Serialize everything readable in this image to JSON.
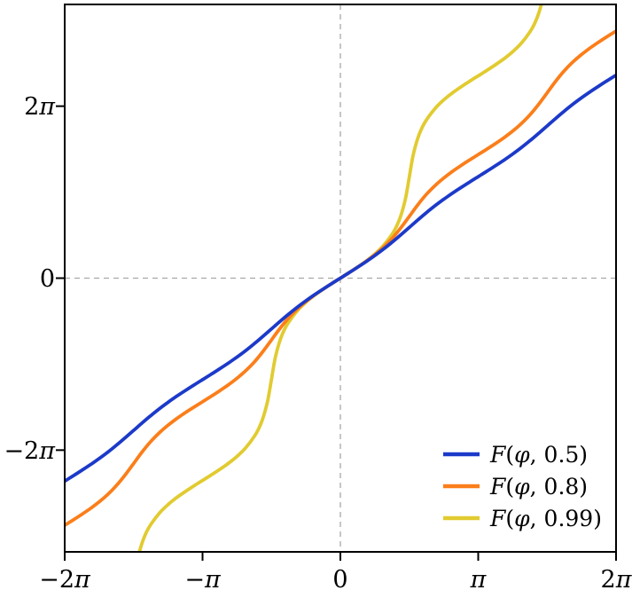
{
  "figure": {
    "background": "#ffffff",
    "title": ""
  },
  "axes": {
    "xlim_over_pi": [
      -2,
      2
    ],
    "ylim": [
      -10,
      10
    ],
    "x_ticks": {
      "values_over_pi": [
        -2,
        -1,
        0,
        1,
        2
      ],
      "labels": [
        "−2π",
        "−π",
        "0",
        "π",
        "2π"
      ]
    },
    "y_ticks": {
      "values_over_pi": [
        -2,
        0,
        2
      ],
      "labels": [
        "−2π",
        "0",
        "2π"
      ]
    },
    "grid": {
      "vertical_at_over_pi": 0,
      "horizontal_at": 0,
      "color": "#a8a8a8",
      "dash": "6 5",
      "width": 1.3
    },
    "spine_color": "#000000",
    "tick_color": "#000000"
  },
  "legend": {
    "position": "lower-right",
    "frame": false,
    "entries": [
      {
        "label": "F(φ, 0.5)"
      },
      {
        "label": "F(φ, 0.8)"
      },
      {
        "label": "F(φ, 0.99)"
      }
    ]
  },
  "chart_data": {
    "type": "line",
    "title": "",
    "xlabel": "",
    "ylabel": "",
    "x_unit": "phi16 = φ × 16 / π  (so 16 = π, 32 = 2π)",
    "y_unit": "F(φ, m) in radians",
    "xlim_over_pi": [
      -2,
      2
    ],
    "ylim": [
      -10,
      10
    ],
    "grid": "crosshair at x=0 and y=0, dashed",
    "legend_position": "lower right",
    "series": [
      {
        "name": "F(φ, 0.5)",
        "parameter_m": 0.5,
        "complete_K": 1.8541,
        "color": "#1c3ac9",
        "linewidth": 3.8,
        "phi16": [
          -32,
          -31,
          -30,
          -29,
          -28,
          -27,
          -26,
          -25,
          -24,
          -23,
          -22,
          -21,
          -20,
          -19,
          -18,
          -17,
          -16,
          -15,
          -14,
          -13,
          -12,
          -11,
          -10,
          -9,
          -8,
          -7,
          -6,
          -5,
          -4,
          -3,
          -2,
          -1,
          0,
          1,
          2,
          3,
          4,
          5,
          6,
          7,
          8,
          9,
          10,
          11,
          12,
          13,
          14,
          15,
          16,
          17,
          18,
          19,
          20,
          21,
          22,
          23,
          24,
          25,
          26,
          27,
          28,
          29,
          30,
          31,
          32
        ],
        "F": [
          -7.4163,
          -7.2193,
          -7.0185,
          -6.8101,
          -6.5903,
          -6.3556,
          -6.1046,
          -5.838,
          -5.5622,
          -5.2865,
          -5.0198,
          -4.7689,
          -4.5342,
          -4.3144,
          -4.1059,
          -3.9051,
          -3.7081,
          -3.5112,
          -3.3104,
          -3.102,
          -2.8821,
          -2.6475,
          -2.3965,
          -2.1299,
          -1.8541,
          -1.5783,
          -1.3117,
          -1.0607,
          -0.826,
          -0.6062,
          -0.3978,
          -0.197,
          0,
          0.197,
          0.3978,
          0.6062,
          0.826,
          1.0607,
          1.3117,
          1.5783,
          1.8541,
          2.1299,
          2.3965,
          2.6475,
          2.8821,
          3.102,
          3.3104,
          3.5112,
          3.7081,
          3.9051,
          4.1059,
          4.3144,
          4.5342,
          4.7689,
          5.0198,
          5.2865,
          5.5622,
          5.838,
          6.1046,
          6.3556,
          6.5903,
          6.8101,
          7.0185,
          7.2193,
          7.4163
        ]
      },
      {
        "name": "F(φ, 0.8)",
        "parameter_m": 0.8,
        "complete_K": 2.2572,
        "color": "#fb7e1a",
        "linewidth": 3.8,
        "phi16": [
          -32,
          -31,
          -30,
          -29,
          -28,
          -27,
          -26,
          -25,
          -24,
          -23,
          -22,
          -21,
          -20,
          -19,
          -18,
          -17,
          -16,
          -15,
          -14,
          -13,
          -12,
          -11,
          -10,
          -9,
          -8,
          -7,
          -6,
          -5,
          -4,
          -3,
          -2,
          -1,
          0,
          1,
          2,
          3,
          4,
          5,
          6,
          7,
          8,
          9,
          10,
          11,
          12,
          13,
          14,
          15,
          16,
          17,
          18,
          19,
          20,
          21,
          22,
          23,
          24,
          25,
          26,
          27,
          28,
          29,
          30,
          31,
          32
        ],
        "F": [
          -9.0288,
          -8.8315,
          -8.6278,
          -8.411,
          -8.172,
          -7.8996,
          -7.5797,
          -7.1983,
          -6.7716,
          -6.3449,
          -5.9636,
          -5.6436,
          -5.3712,
          -5.1322,
          -4.9154,
          -4.7118,
          -4.5144,
          -4.3171,
          -4.1134,
          -3.8966,
          -3.6576,
          -3.3852,
          -3.0653,
          -2.6839,
          -2.2572,
          -1.8305,
          -1.4491,
          -1.1292,
          -0.8568,
          -0.6178,
          -0.401,
          -0.1973,
          0,
          0.1973,
          0.401,
          0.6178,
          0.8568,
          1.1292,
          1.4491,
          1.8305,
          2.2572,
          2.6839,
          3.0653,
          3.3852,
          3.6576,
          3.8966,
          4.1134,
          4.3171,
          4.5144,
          4.7118,
          4.9154,
          5.1322,
          5.3712,
          5.6436,
          5.9636,
          6.3449,
          6.7716,
          7.1983,
          7.5797,
          7.8996,
          8.172,
          8.411,
          8.6278,
          8.8315,
          9.0288
        ]
      },
      {
        "name": "F(φ, 0.99)",
        "parameter_m": 0.99,
        "complete_K": 3.6956,
        "color": "#e1cb30",
        "linewidth": 3.8,
        "phi16": [
          -24,
          -23.75,
          -23.5,
          -23,
          -22.5,
          -22,
          -21,
          -20,
          -19,
          -18,
          -17,
          -16,
          -15,
          -14,
          -13,
          -12,
          -11,
          -10,
          -9.5,
          -9,
          -8.5,
          -8.25,
          -8,
          -7.75,
          -7.5,
          -7,
          -6.5,
          -6,
          -5,
          -4,
          -3,
          -2,
          -1,
          0,
          1,
          2,
          3,
          4,
          5,
          6,
          6.5,
          7,
          7.5,
          7.75,
          8,
          8.25,
          8.5,
          9,
          9.5,
          10,
          11,
          12,
          13,
          14,
          15,
          16,
          17,
          18,
          19,
          20,
          21,
          22,
          22.5,
          23,
          23.5,
          23.75,
          24
        ],
        "F": [
          -11.0869,
          -10.6143,
          -10.2181,
          -9.6562,
          -9.2755,
          -8.9949,
          -8.5805,
          -8.2714,
          -8.0173,
          -7.7944,
          -7.5888,
          -7.3913,
          -7.1937,
          -6.9882,
          -6.7653,
          -6.5112,
          -6.2021,
          -5.7876,
          -5.5071,
          -5.1264,
          -4.5644,
          -4.1683,
          -3.6956,
          -3.223,
          -2.8269,
          -2.2649,
          -1.8842,
          -1.6037,
          -1.1892,
          -0.8801,
          -0.626,
          -0.4031,
          -0.1976,
          0,
          0.1976,
          0.4031,
          0.626,
          0.8801,
          1.1892,
          1.6037,
          1.8842,
          2.2649,
          2.8269,
          3.223,
          3.6956,
          4.1683,
          4.5644,
          5.1264,
          5.5071,
          5.7876,
          6.2021,
          6.5112,
          6.7653,
          6.9882,
          7.1937,
          7.3913,
          7.5888,
          7.7944,
          8.0173,
          8.2714,
          8.5805,
          8.9949,
          9.2755,
          9.6562,
          10.2181,
          10.6143,
          11.0869
        ]
      }
    ]
  }
}
